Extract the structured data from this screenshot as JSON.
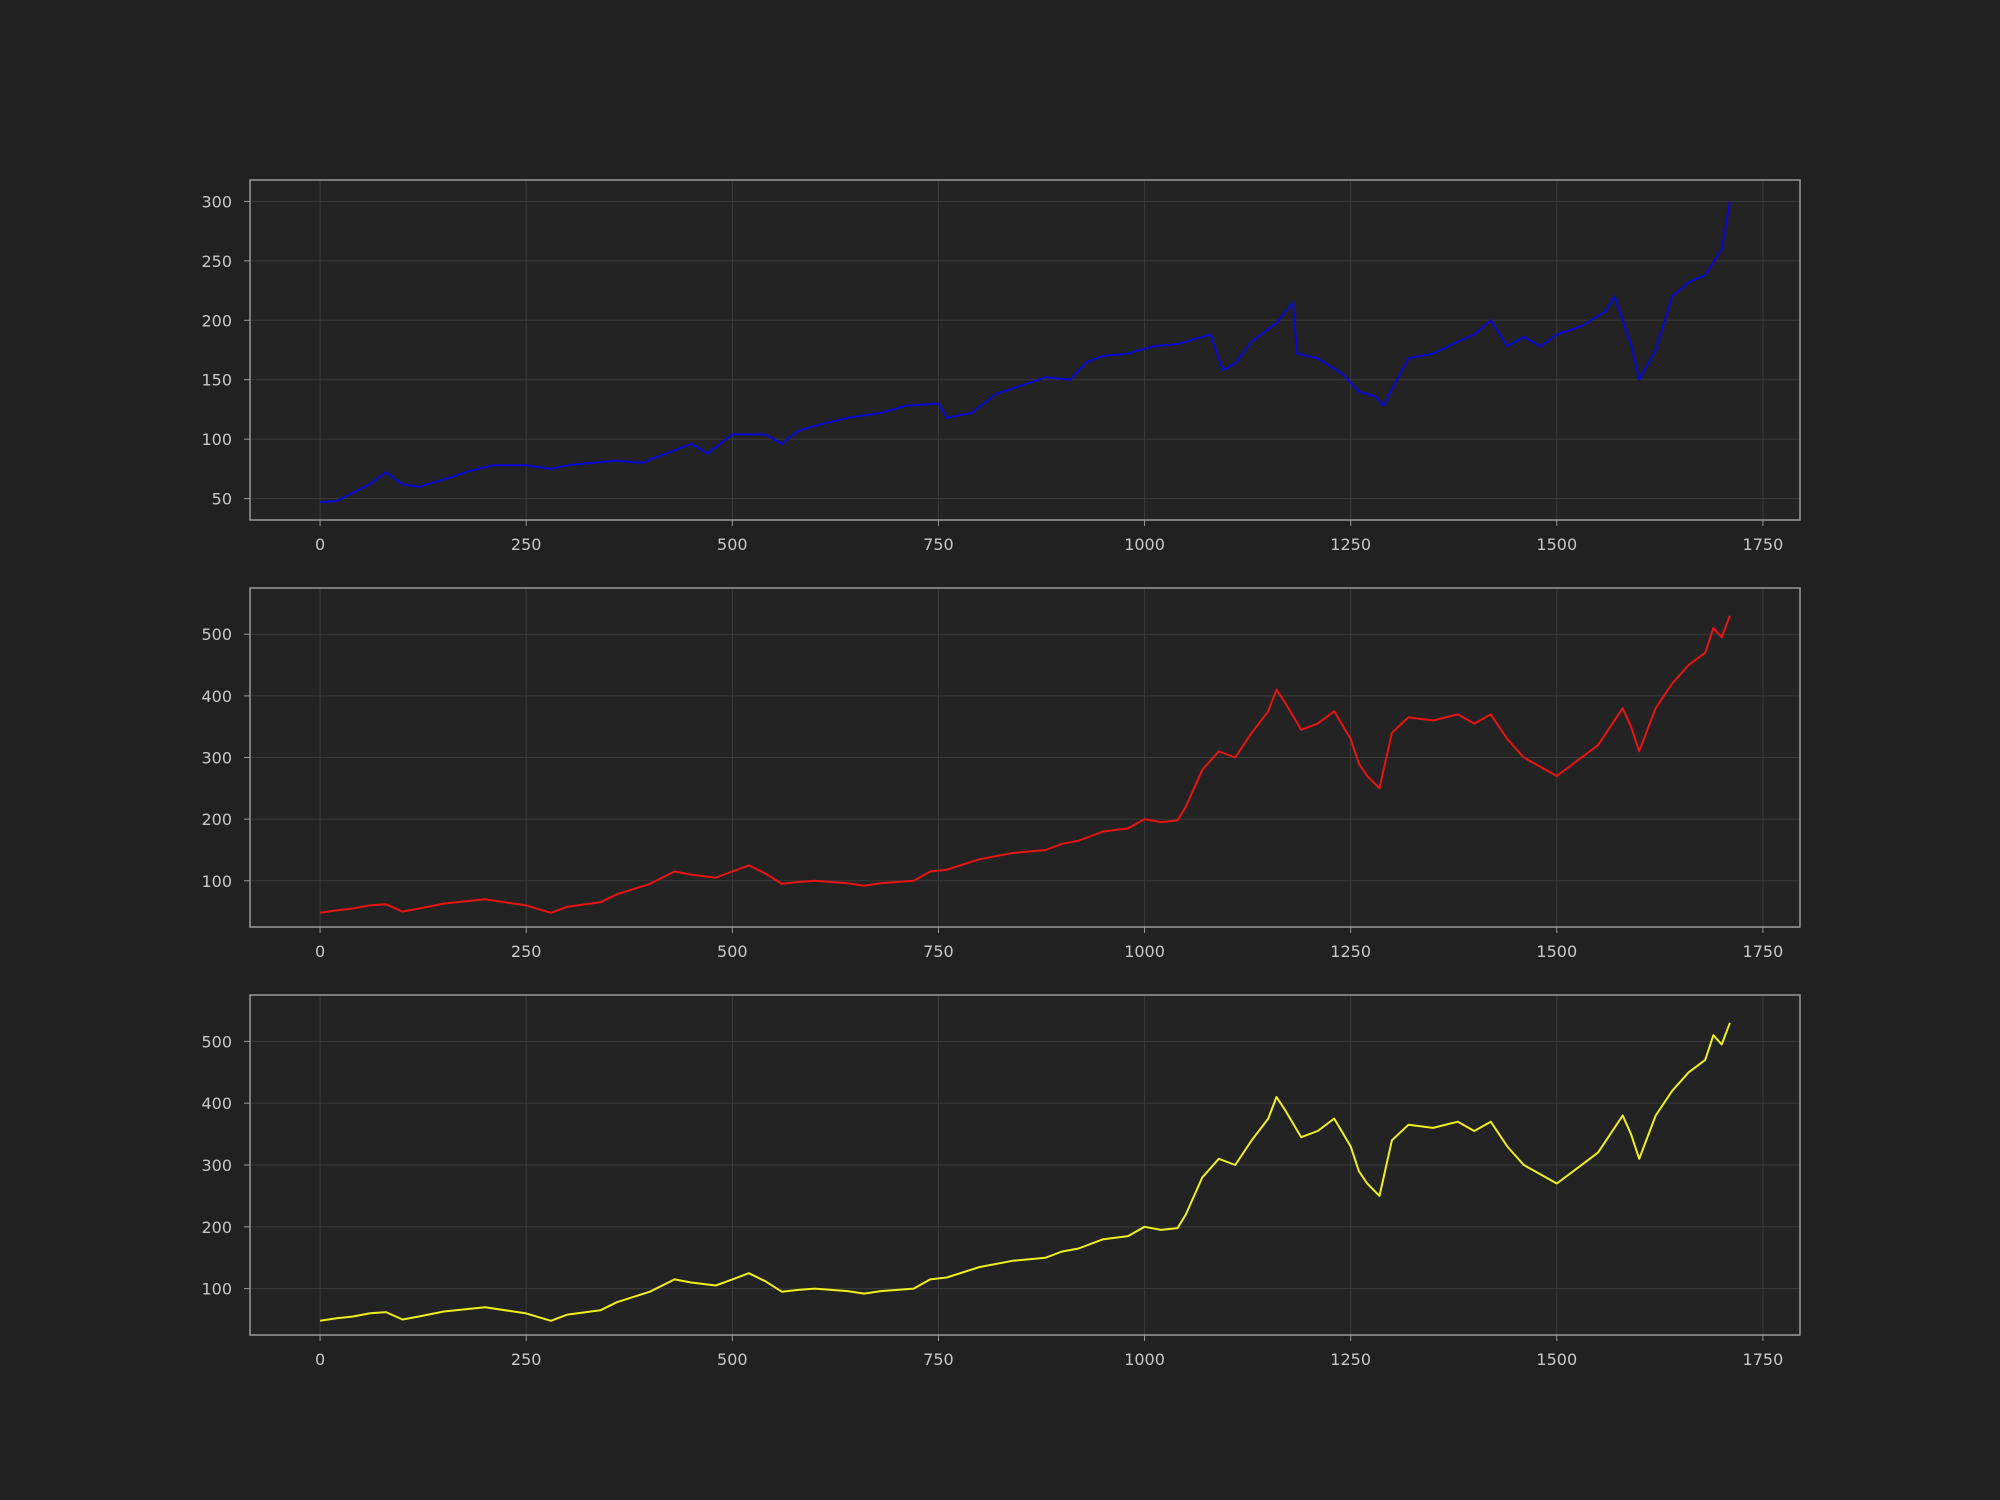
{
  "figure": {
    "background": "#212121",
    "panel_background": "#232323",
    "grid_color": "#3a3a3a",
    "frame_color": "#9a9a9a",
    "tick_label_color": "#c8c8c8"
  },
  "chart_data": [
    {
      "type": "line",
      "title": "",
      "xlabel": "",
      "ylabel": "",
      "grid": true,
      "xlim": [
        -85,
        1795
      ],
      "ylim": [
        32,
        318
      ],
      "xticks": [
        0,
        250,
        500,
        750,
        1000,
        1250,
        1500,
        1750
      ],
      "yticks": [
        50,
        100,
        150,
        200,
        250,
        300
      ],
      "series": [
        {
          "color": "#0a0ad6",
          "x": [
            0,
            20,
            40,
            60,
            80,
            100,
            120,
            150,
            180,
            210,
            250,
            280,
            300,
            330,
            360,
            390,
            420,
            450,
            470,
            500,
            540,
            560,
            580,
            610,
            640,
            680,
            710,
            750,
            760,
            790,
            820,
            850,
            880,
            910,
            930,
            950,
            980,
            1010,
            1040,
            1060,
            1080,
            1095,
            1110,
            1130,
            1160,
            1180,
            1185,
            1210,
            1240,
            1260,
            1280,
            1290,
            1300,
            1320,
            1350,
            1380,
            1400,
            1420,
            1440,
            1460,
            1480,
            1500,
            1530,
            1560,
            1570,
            1590,
            1600,
            1620,
            1640,
            1660,
            1680,
            1700,
            1710
          ],
          "values": [
            47,
            48,
            55,
            62,
            72,
            62,
            60,
            66,
            73,
            78,
            78,
            75,
            78,
            80,
            82,
            80,
            88,
            96,
            88,
            104,
            104,
            96,
            107,
            113,
            118,
            122,
            128,
            130,
            118,
            122,
            138,
            145,
            152,
            150,
            165,
            170,
            172,
            178,
            180,
            184,
            188,
            158,
            164,
            182,
            198,
            215,
            172,
            168,
            155,
            140,
            136,
            128,
            142,
            168,
            172,
            182,
            188,
            200,
            178,
            186,
            178,
            188,
            195,
            208,
            220,
            180,
            150,
            175,
            220,
            232,
            238,
            260,
            300
          ]
        }
      ]
    },
    {
      "type": "line",
      "title": "",
      "xlabel": "",
      "ylabel": "",
      "grid": true,
      "xlim": [
        -85,
        1795
      ],
      "ylim": [
        25,
        575
      ],
      "xticks": [
        0,
        250,
        500,
        750,
        1000,
        1250,
        1500,
        1750
      ],
      "yticks": [
        100,
        200,
        300,
        400,
        500
      ],
      "series": [
        {
          "color": "#e81414",
          "x": [
            0,
            20,
            40,
            60,
            80,
            100,
            120,
            150,
            200,
            250,
            280,
            300,
            340,
            360,
            400,
            430,
            450,
            480,
            500,
            520,
            540,
            560,
            580,
            600,
            640,
            660,
            680,
            720,
            740,
            760,
            800,
            840,
            880,
            900,
            920,
            950,
            980,
            1000,
            1020,
            1040,
            1050,
            1070,
            1090,
            1110,
            1130,
            1150,
            1160,
            1170,
            1190,
            1210,
            1230,
            1250,
            1260,
            1270,
            1285,
            1300,
            1320,
            1350,
            1380,
            1400,
            1420,
            1440,
            1460,
            1480,
            1500,
            1520,
            1550,
            1580,
            1590,
            1600,
            1620,
            1640,
            1660,
            1680,
            1690,
            1700,
            1710
          ],
          "values": [
            48,
            52,
            55,
            60,
            62,
            50,
            55,
            63,
            70,
            60,
            48,
            58,
            65,
            78,
            95,
            115,
            110,
            105,
            115,
            125,
            112,
            95,
            98,
            100,
            96,
            92,
            96,
            100,
            115,
            118,
            135,
            145,
            150,
            160,
            165,
            180,
            185,
            200,
            195,
            198,
            220,
            280,
            310,
            300,
            340,
            375,
            410,
            390,
            345,
            355,
            375,
            330,
            290,
            270,
            250,
            340,
            365,
            360,
            370,
            355,
            370,
            330,
            300,
            285,
            270,
            290,
            320,
            380,
            350,
            310,
            380,
            420,
            450,
            470,
            510,
            495,
            530
          ]
        }
      ]
    },
    {
      "type": "line",
      "title": "",
      "xlabel": "",
      "ylabel": "",
      "grid": true,
      "xlim": [
        -85,
        1795
      ],
      "ylim": [
        25,
        575
      ],
      "xticks": [
        0,
        250,
        500,
        750,
        1000,
        1250,
        1500,
        1750
      ],
      "yticks": [
        100,
        200,
        300,
        400,
        500
      ],
      "series": [
        {
          "color": "#f0ef1e",
          "x": [
            0,
            20,
            40,
            60,
            80,
            100,
            120,
            150,
            200,
            250,
            280,
            300,
            340,
            360,
            400,
            430,
            450,
            480,
            500,
            520,
            540,
            560,
            580,
            600,
            640,
            660,
            680,
            720,
            740,
            760,
            800,
            840,
            880,
            900,
            920,
            950,
            980,
            1000,
            1020,
            1040,
            1050,
            1070,
            1090,
            1110,
            1130,
            1150,
            1160,
            1170,
            1190,
            1210,
            1230,
            1250,
            1260,
            1270,
            1285,
            1300,
            1320,
            1350,
            1380,
            1400,
            1420,
            1440,
            1460,
            1480,
            1500,
            1520,
            1550,
            1580,
            1590,
            1600,
            1620,
            1640,
            1660,
            1680,
            1690,
            1700,
            1710
          ],
          "values": [
            48,
            52,
            55,
            60,
            62,
            50,
            55,
            63,
            70,
            60,
            48,
            58,
            65,
            78,
            95,
            115,
            110,
            105,
            115,
            125,
            112,
            95,
            98,
            100,
            96,
            92,
            96,
            100,
            115,
            118,
            135,
            145,
            150,
            160,
            165,
            180,
            185,
            200,
            195,
            198,
            220,
            280,
            310,
            300,
            340,
            375,
            410,
            390,
            345,
            355,
            375,
            330,
            290,
            270,
            250,
            340,
            365,
            360,
            370,
            355,
            370,
            330,
            300,
            285,
            270,
            290,
            320,
            380,
            350,
            310,
            380,
            420,
            450,
            470,
            510,
            495,
            530
          ]
        }
      ]
    }
  ]
}
